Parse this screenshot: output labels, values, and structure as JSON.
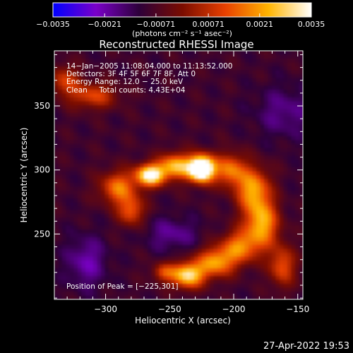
{
  "chart_data": {
    "type": "heatmap",
    "title": "Reconstructed RHESSI Image",
    "xlabel": "Heliocentric X (arcsec)",
    "ylabel": "Heliocentric Y (arcsec)",
    "xlim": [
      -340,
      -146
    ],
    "ylim": [
      199,
      393
    ],
    "x_ticks": [
      -300,
      -250,
      -200,
      -150
    ],
    "x_tick_labels": [
      "−300",
      "−250",
      "−200",
      "−150"
    ],
    "y_ticks": [
      250,
      300,
      350
    ],
    "y_tick_labels": [
      "250",
      "300",
      "350"
    ],
    "x_minor_step": 10,
    "y_minor_step": 10,
    "colorbar": {
      "min": -0.0035,
      "max": 0.0035,
      "tick_values": [
        -0.0035,
        -0.0021,
        -0.00071,
        0.00071,
        0.0021,
        0.0035
      ],
      "tick_labels": [
        "−0.0035",
        "−0.0021",
        "−0.00071",
        "0.00071",
        "0.0021",
        "0.0035"
      ],
      "unit_label": "(photons cm⁻² s⁻¹ asec⁻²)",
      "colors": [
        "#0000ff",
        "#7a00c8",
        "#2d003a",
        "#7a0c00",
        "#e84000",
        "#ffb400",
        "#ffffff"
      ]
    },
    "annotations": [
      "14−Jan−2005 11:08:04.000 to 11:13:52.000",
      "Detectors: 3F 4F 5F 6F 7F 8F, Att 0",
      "Energy Range: 12.0 − 25.0 keV",
      "Clean     Total counts: 4.43E+04"
    ],
    "peak_label": "Position of Peak = [−225,301]",
    "peak_position": [
      -225,
      301
    ],
    "background_level": -0.0009,
    "sources": [
      {
        "x": -225,
        "y": 301,
        "sx": 7,
        "sy": 7,
        "amp": 0.0068
      },
      {
        "x": -265,
        "y": 296,
        "sx": 8,
        "sy": 6,
        "amp": 0.0046
      },
      {
        "x": -245,
        "y": 303,
        "sx": 9,
        "sy": 7,
        "amp": 0.0034
      },
      {
        "x": -290,
        "y": 286,
        "sx": 10,
        "sy": 9,
        "amp": 0.0026
      },
      {
        "x": -280,
        "y": 268,
        "sx": 7,
        "sy": 8,
        "amp": 0.0022
      },
      {
        "x": -203,
        "y": 300,
        "sx": 8,
        "sy": 9,
        "amp": 0.0026
      },
      {
        "x": -185,
        "y": 285,
        "sx": 9,
        "sy": 12,
        "amp": 0.003
      },
      {
        "x": -178,
        "y": 258,
        "sx": 9,
        "sy": 13,
        "amp": 0.0032
      },
      {
        "x": -195,
        "y": 240,
        "sx": 10,
        "sy": 9,
        "amp": 0.0026
      },
      {
        "x": -214,
        "y": 228,
        "sx": 10,
        "sy": 8,
        "amp": 0.003
      },
      {
        "x": -236,
        "y": 218,
        "sx": 9,
        "sy": 7,
        "amp": 0.004
      },
      {
        "x": -255,
        "y": 220,
        "sx": 6,
        "sy": 5,
        "amp": 0.0018
      },
      {
        "x": -162,
        "y": 225,
        "sx": 7,
        "sy": 11,
        "amp": 0.0022
      },
      {
        "x": -310,
        "y": 358,
        "sx": 13,
        "sy": 7,
        "amp": 0.002
      },
      {
        "x": -332,
        "y": 370,
        "sx": 8,
        "sy": 8,
        "amp": 0.0018
      },
      {
        "x": -315,
        "y": 228,
        "sx": 11,
        "sy": 14,
        "amp": -0.0012
      },
      {
        "x": -248,
        "y": 250,
        "sx": 14,
        "sy": 9,
        "amp": -0.001
      },
      {
        "x": -160,
        "y": 345,
        "sx": 16,
        "sy": 14,
        "amp": -0.0009
      }
    ]
  },
  "footer": {
    "timestamp": "27-Apr-2022 19:53"
  }
}
